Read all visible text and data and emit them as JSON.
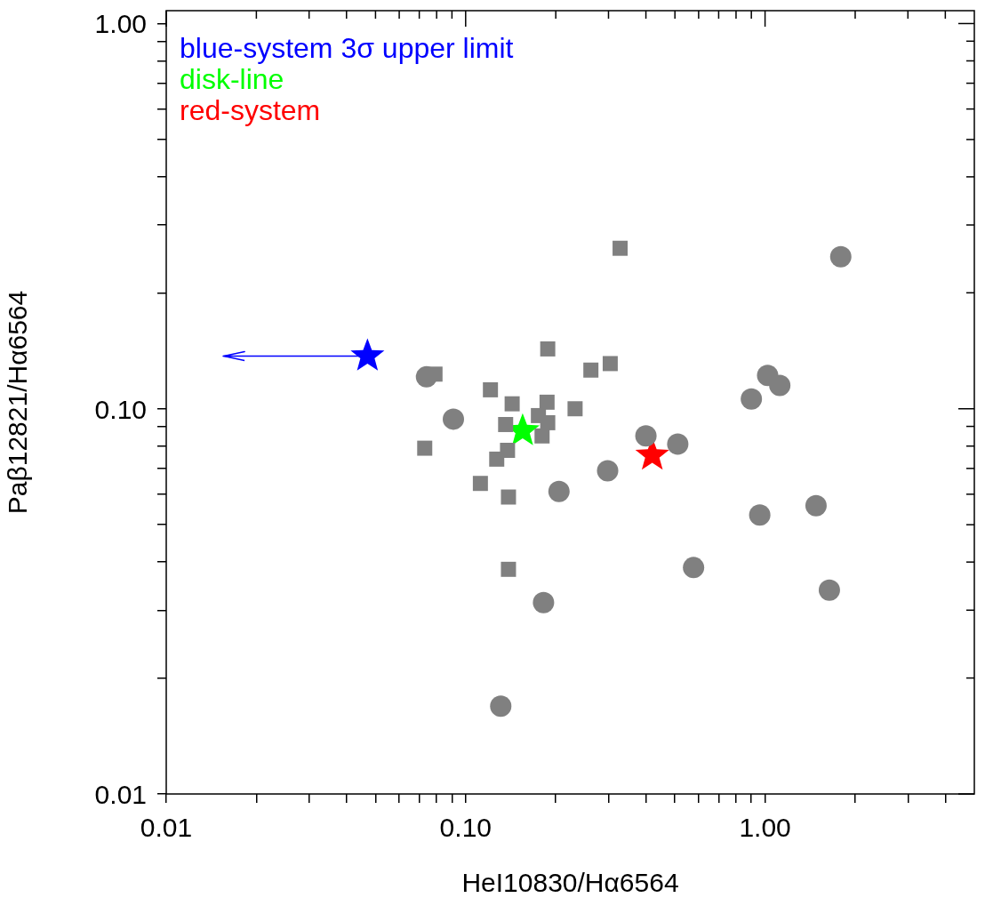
{
  "chart_data": {
    "type": "scatter",
    "xlabel": "HeI10830/Hα6564",
    "ylabel": "Paβ12821/Hα6564",
    "log": "xy",
    "xlim": [
      0.01,
      5
    ],
    "ylim": [
      0.01,
      1.08
    ],
    "xticks": [
      0.01,
      {
        "value": 0.02,
        "label": null
      },
      {
        "value": 0.03,
        "label": null
      },
      {
        "value": 0.04,
        "label": null
      },
      {
        "value": 0.05,
        "label": null
      },
      {
        "value": 0.06,
        "label": null
      },
      {
        "value": 0.07,
        "label": null
      },
      {
        "value": 0.08,
        "label": null
      },
      {
        "value": 0.09,
        "label": null
      },
      {
        "value": 0.1,
        "label": "0.10"
      },
      {
        "value": 0.2,
        "label": null
      },
      {
        "value": 0.3,
        "label": null
      },
      {
        "value": 0.4,
        "label": null
      },
      {
        "value": 0.5,
        "label": null
      },
      {
        "value": 0.6,
        "label": null
      },
      {
        "value": 0.7,
        "label": null
      },
      {
        "value": 0.8,
        "label": null
      },
      {
        "value": 0.9,
        "label": null
      },
      {
        "value": 1,
        "label": "1.00"
      },
      {
        "value": 2,
        "label": null
      },
      {
        "value": 3,
        "label": null
      },
      {
        "value": 4,
        "label": null
      }
    ],
    "yticks": [
      0.01,
      {
        "value": 0.02,
        "label": null
      },
      {
        "value": 0.03,
        "label": null
      },
      {
        "value": 0.04,
        "label": null
      },
      {
        "value": 0.05,
        "label": null
      },
      {
        "value": 0.06,
        "label": null
      },
      {
        "value": 0.07,
        "label": null
      },
      {
        "value": 0.08,
        "label": null
      },
      {
        "value": 0.09,
        "label": null
      },
      {
        "value": 0.1,
        "label": "0.10"
      },
      {
        "value": 0.2,
        "label": null
      },
      {
        "value": 0.3,
        "label": null
      },
      {
        "value": 0.4,
        "label": null
      },
      {
        "value": 0.5,
        "label": null
      },
      {
        "value": 0.6,
        "label": null
      },
      {
        "value": 0.7,
        "label": null
      },
      {
        "value": 0.8,
        "label": null
      },
      {
        "value": 0.9,
        "label": null
      },
      {
        "value": 1,
        "label": "1.00"
      }
    ],
    "grid": false,
    "legend": "top left",
    "series": [
      {
        "color": "#808080",
        "marker": "square",
        "x": [
          0.079,
          0.073,
          0.121,
          0.143,
          0.136,
          0.138,
          0.127,
          0.112,
          0.139,
          0.139,
          0.188,
          0.262,
          0.304,
          0.187,
          0.175,
          0.188,
          0.18,
          0.232,
          0.328
        ],
        "values": [
          0.123,
          0.079,
          0.112,
          0.103,
          0.091,
          0.078,
          0.074,
          0.064,
          0.059,
          0.0383,
          0.143,
          0.126,
          0.131,
          0.104,
          0.096,
          0.092,
          0.085,
          0.1,
          0.261
        ]
      },
      {
        "color": "#808080",
        "marker": "circle",
        "x": [
          0.074,
          0.091,
          0.205,
          0.298,
          0.4,
          0.511,
          0.577,
          0.182,
          0.131,
          1.79,
          1.02,
          1.12,
          0.9,
          0.96,
          1.48,
          1.64
        ],
        "values": [
          0.121,
          0.094,
          0.061,
          0.069,
          0.085,
          0.081,
          0.0387,
          0.0314,
          0.0169,
          0.248,
          0.122,
          0.115,
          0.106,
          0.053,
          0.056,
          0.0338
        ]
      },
      {
        "name": "blue-system 3σ upper limit",
        "color": "#0000ff",
        "marker": "star",
        "x": [
          0.047
        ],
        "values": [
          0.137
        ],
        "xerrors": [
          [
            0.0155,
            0.047
          ]
        ]
      },
      {
        "name": "disk-line",
        "color": "#00ff00",
        "marker": "star",
        "x": [
          0.155
        ],
        "values": [
          0.0876
        ]
      },
      {
        "name": "red-system",
        "color": "#ff0000",
        "marker": "star",
        "x": [
          0.42
        ],
        "values": [
          0.0757
        ]
      }
    ]
  }
}
